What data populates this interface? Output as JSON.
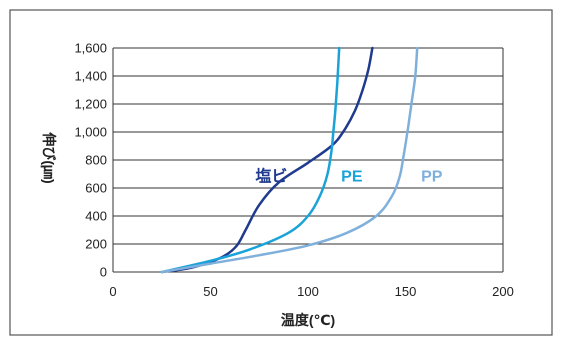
{
  "chart_data": {
    "type": "line",
    "xlabel": "温度(℃)",
    "ylabel": "伸び(㎛)",
    "xlim": [
      0,
      200
    ],
    "ylim": [
      0,
      1600
    ],
    "x_ticks": [
      "0",
      "50",
      "100",
      "150",
      "200"
    ],
    "y_ticks": [
      "0",
      "200",
      "400",
      "600",
      "800",
      "1,000",
      "1,200",
      "1,400",
      "1,600"
    ],
    "grid": "horizontal",
    "colors": {
      "frame": "#555555",
      "grid": "#333333",
      "塩ビ": "#1f3a8f",
      "PE": "#1aa3d9",
      "PP": "#7fb0dc"
    },
    "series": [
      {
        "name": "塩ビ",
        "x": [
          25,
          40,
          55,
          63,
          68,
          75,
          85,
          100,
          112,
          118,
          124,
          128,
          131,
          133
        ],
        "y": [
          0,
          30,
          100,
          180,
          300,
          480,
          640,
          780,
          900,
          1000,
          1150,
          1300,
          1450,
          1600
        ],
        "label_at": [
          73,
          690
        ]
      },
      {
        "name": "PE",
        "x": [
          25,
          50,
          70,
          90,
          100,
          106,
          110,
          112,
          113,
          114,
          115,
          116
        ],
        "y": [
          0,
          80,
          160,
          280,
          400,
          540,
          700,
          860,
          1000,
          1150,
          1350,
          1600
        ],
        "label_at": [
          117,
          690
        ]
      },
      {
        "name": "PP",
        "x": [
          25,
          50,
          75,
          100,
          120,
          135,
          143,
          147,
          149,
          151,
          153,
          155,
          156
        ],
        "y": [
          0,
          60,
          120,
          190,
          280,
          400,
          540,
          680,
          830,
          1000,
          1200,
          1400,
          1600
        ],
        "label_at": [
          158,
          690
        ]
      }
    ]
  }
}
